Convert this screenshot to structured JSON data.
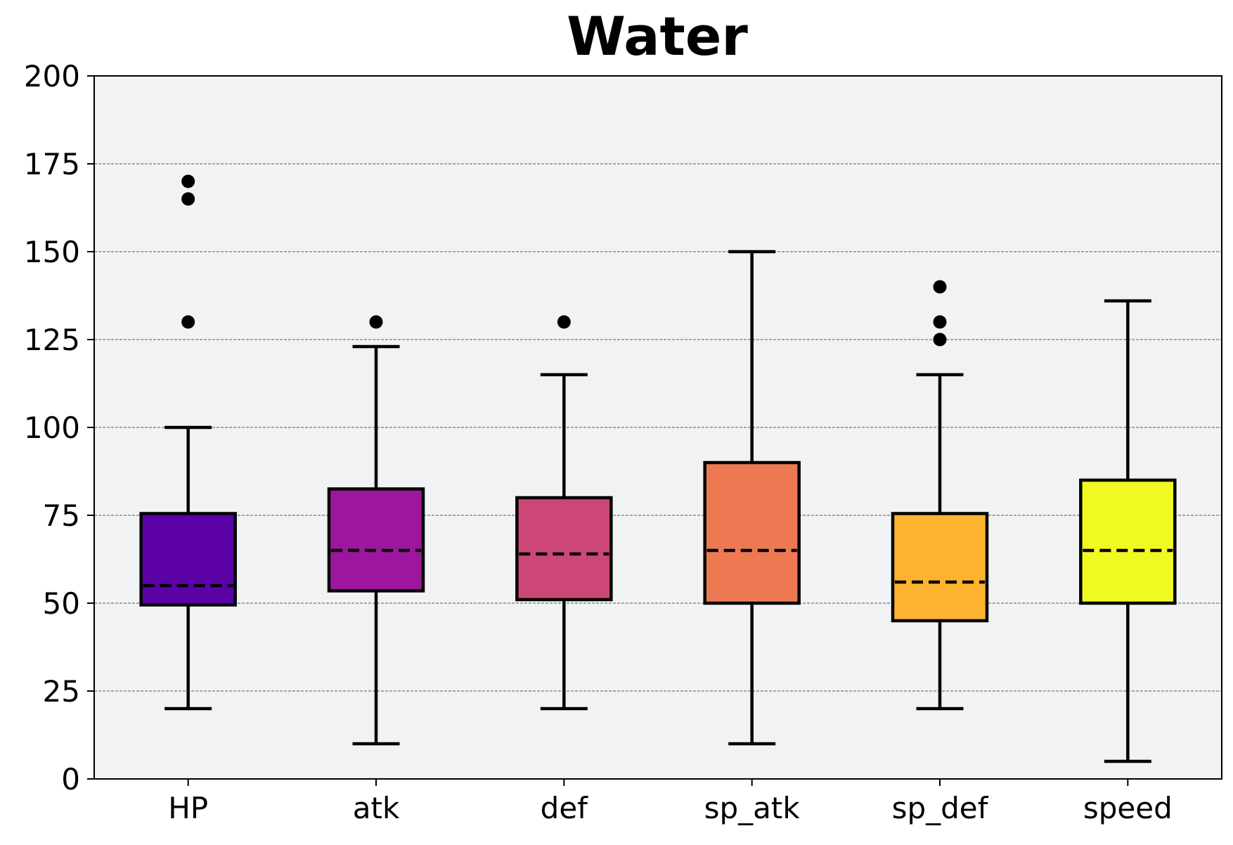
{
  "chart_data": {
    "type": "box",
    "title": "Water",
    "xlabel": "",
    "ylabel": "",
    "ylim": [
      0,
      200
    ],
    "yticks": [
      0,
      25,
      50,
      75,
      100,
      125,
      150,
      175,
      200
    ],
    "grid": "horizontal dashed",
    "median_style": "dashed",
    "colors": {
      "background": "#f1f2f4",
      "grid": "#555555",
      "outline": "#000000"
    },
    "boxes": [
      {
        "category": "HP",
        "whisker_low": 20,
        "q1": 49.5,
        "median": 55,
        "q3": 75.5,
        "whisker_high": 100,
        "outliers": [
          130,
          165,
          170
        ],
        "color": "#5c01a6"
      },
      {
        "category": "atk",
        "whisker_low": 10,
        "q1": 53.5,
        "median": 65,
        "q3": 82.5,
        "whisker_high": 123,
        "outliers": [
          130
        ],
        "color": "#9c179e"
      },
      {
        "category": "def",
        "whisker_low": 20,
        "q1": 51,
        "median": 64,
        "q3": 80,
        "whisker_high": 115,
        "outliers": [
          130
        ],
        "color": "#cc4778"
      },
      {
        "category": "sp_atk",
        "whisker_low": 10,
        "q1": 50,
        "median": 65,
        "q3": 90,
        "whisker_high": 150,
        "outliers": [],
        "color": "#ed7953"
      },
      {
        "category": "sp_def",
        "whisker_low": 20,
        "q1": 45,
        "median": 56,
        "q3": 75.5,
        "whisker_high": 115,
        "outliers": [
          125,
          130,
          140
        ],
        "color": "#fdb32f"
      },
      {
        "category": "speed",
        "whisker_low": 5,
        "q1": 50,
        "median": 65,
        "q3": 85,
        "whisker_high": 136,
        "outliers": [],
        "color": "#f0f921"
      }
    ]
  }
}
